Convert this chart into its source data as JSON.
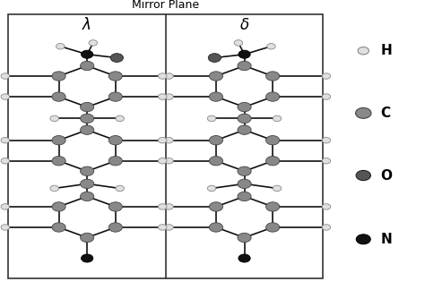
{
  "title": "Mirror Plane",
  "lambda_label": "λ",
  "delta_label": "δ",
  "legend_labels": [
    "H",
    "C",
    "O",
    "N"
  ],
  "legend_colors": [
    "#e0e0e0",
    "#888888",
    "#555555",
    "#111111"
  ],
  "legend_ec": [
    "#888888",
    "#444444",
    "#222222",
    "#000000"
  ],
  "bond_color": "#111111",
  "bond_lw": 1.2,
  "background_color": "#ffffff",
  "box_color": "#333333",
  "H_color": "#e0e0e0",
  "C_color": "#888888",
  "O_color": "#555555",
  "N_color": "#111111",
  "H_ec": "#888888",
  "C_ec": "#444444",
  "O_ec": "#222222",
  "N_ec": "#000000",
  "H_r": 0.01,
  "C_r": 0.016,
  "O_r": 0.015,
  "N_r": 0.014
}
